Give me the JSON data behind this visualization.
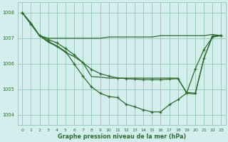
{
  "background_color": "#d4eeee",
  "grid_color": "#99ccbb",
  "line_color": "#2d6b2d",
  "xlabel": "Graphe pression niveau de la mer (hPa)",
  "xlim": [
    -0.5,
    23.5
  ],
  "ylim": [
    1003.6,
    1008.4
  ],
  "yticks": [
    1004,
    1005,
    1006,
    1007,
    1008
  ],
  "xticks": [
    0,
    1,
    2,
    3,
    4,
    5,
    6,
    7,
    8,
    9,
    10,
    11,
    12,
    13,
    14,
    15,
    16,
    17,
    18,
    19,
    20,
    21,
    22,
    23
  ],
  "line1_x": [
    0,
    1,
    2,
    3,
    4,
    5,
    6,
    7,
    8,
    9,
    10,
    11,
    12,
    13,
    14,
    15,
    16,
    17,
    18,
    19,
    20,
    21,
    22,
    23
  ],
  "line1_y": [
    1008.0,
    1007.55,
    1007.1,
    1007.0,
    1007.0,
    1007.0,
    1007.0,
    1007.0,
    1007.0,
    1007.0,
    1007.05,
    1007.05,
    1007.05,
    1007.05,
    1007.05,
    1007.05,
    1007.1,
    1007.1,
    1007.1,
    1007.1,
    1007.1,
    1007.1,
    1007.15,
    1007.1
  ],
  "line1_marker": false,
  "line2_x": [
    0,
    1,
    2,
    3,
    4,
    5,
    6,
    7,
    8,
    9,
    10,
    11,
    12,
    13,
    14,
    15,
    16,
    17,
    18,
    19,
    20,
    21,
    22,
    23
  ],
  "line2_y": [
    1008.0,
    1007.6,
    1007.1,
    1006.85,
    1006.68,
    1006.45,
    1006.28,
    1006.05,
    1005.5,
    1005.48,
    1005.44,
    1005.44,
    1005.44,
    1005.44,
    1005.44,
    1005.44,
    1005.44,
    1005.44,
    1005.44,
    1004.85,
    1004.82,
    1006.2,
    1007.1,
    1007.1
  ],
  "line2_marker": false,
  "line3_x": [
    0,
    1,
    2,
    3,
    4,
    5,
    6,
    7,
    8,
    9,
    10,
    11,
    12,
    13,
    14,
    15,
    16,
    17,
    18,
    19,
    20,
    21,
    22,
    23
  ],
  "line3_y": [
    1008.0,
    1007.55,
    1007.1,
    1006.88,
    1006.7,
    1006.48,
    1006.0,
    1005.52,
    1005.1,
    1004.85,
    1004.72,
    1004.68,
    1004.42,
    1004.32,
    1004.2,
    1004.12,
    1004.12,
    1004.4,
    1004.6,
    1004.85,
    1005.8,
    1006.55,
    1007.05,
    1007.1
  ],
  "line3_marker": true,
  "line4_x": [
    0,
    1,
    2,
    3,
    4,
    5,
    6,
    7,
    8,
    9,
    10,
    11,
    12,
    13,
    14,
    15,
    16,
    17,
    18,
    19,
    20,
    21,
    22,
    23
  ],
  "line4_y": [
    1008.0,
    1007.58,
    1007.1,
    1006.95,
    1006.82,
    1006.6,
    1006.35,
    1006.05,
    1005.78,
    1005.62,
    1005.52,
    1005.45,
    1005.42,
    1005.4,
    1005.38,
    1005.38,
    1005.38,
    1005.4,
    1005.42,
    1004.88,
    1004.85,
    1006.22,
    1007.08,
    1007.1
  ],
  "line4_marker": true
}
